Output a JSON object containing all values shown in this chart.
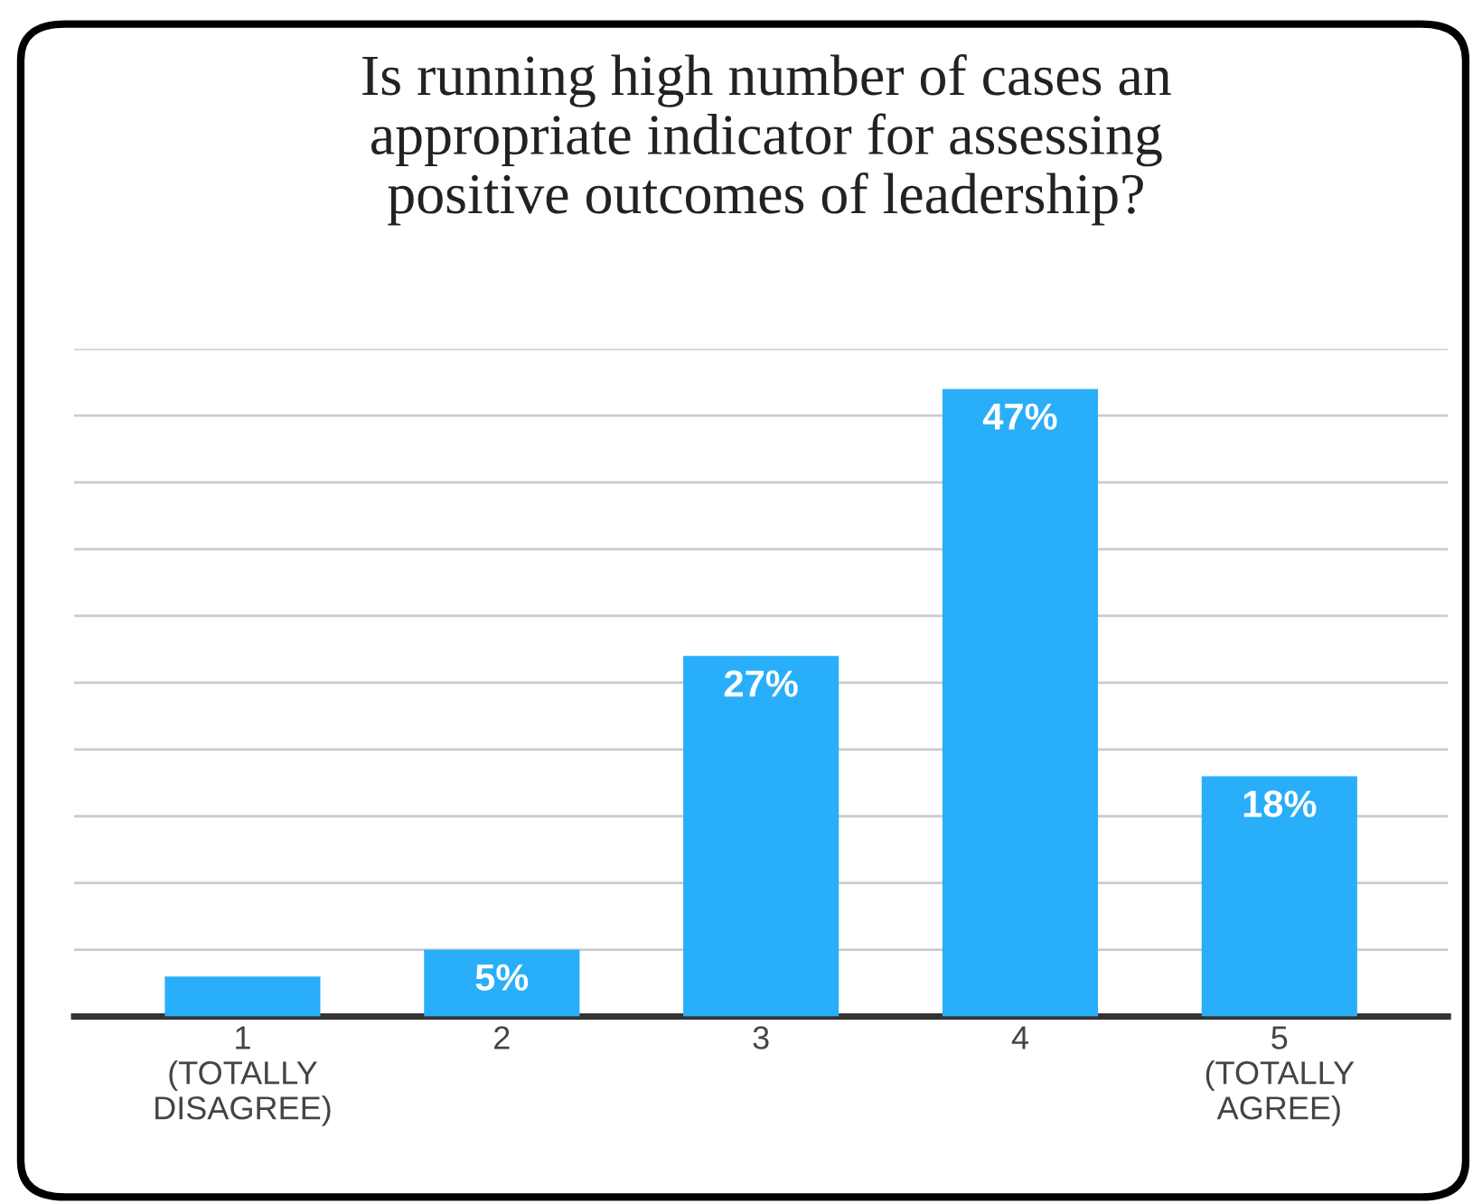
{
  "chart_data": {
    "type": "bar",
    "title": "Is running high number of cases an\nappropriate indicator for assessing\npositive outcomes of leadership?",
    "categories": [
      "1\n(TOTALLY\nDISAGREE)",
      "2",
      "3",
      "4",
      "5\n(TOTALLY\nAGREE)"
    ],
    "values": [
      3,
      5,
      27,
      47,
      18
    ],
    "value_labels": [
      null,
      "5%",
      "27%",
      "47%",
      "18%"
    ],
    "color": "#29aef9",
    "ylim": [
      0,
      50
    ],
    "yticks": [
      {
        "value": 0,
        "label": null
      },
      {
        "value": 5,
        "label": null
      },
      {
        "value": 10,
        "label": null
      },
      {
        "value": 15,
        "label": null
      },
      {
        "value": 20,
        "label": null
      },
      {
        "value": 25,
        "label": null
      },
      {
        "value": 30,
        "label": null
      },
      {
        "value": 35,
        "label": null
      },
      {
        "value": 40,
        "label": null
      },
      {
        "value": 45,
        "label": null
      },
      {
        "value": 50,
        "label": null
      }
    ],
    "grid": "y",
    "legend": false
  }
}
